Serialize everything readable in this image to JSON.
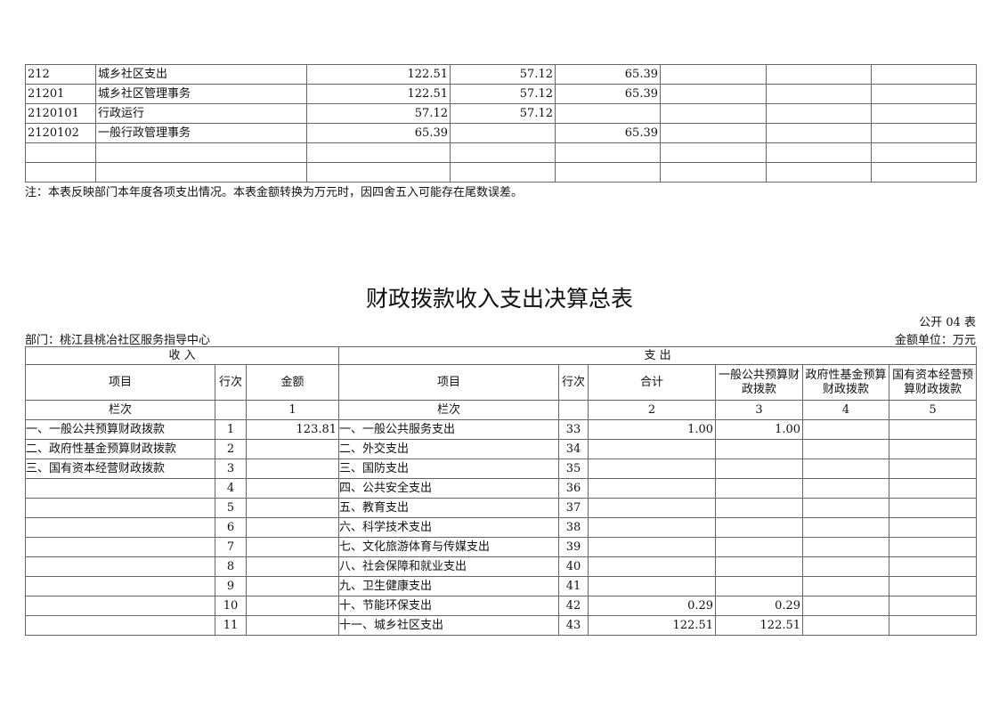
{
  "top_table": {
    "rows": [
      [
        "212",
        "城乡社区支出",
        "122.51",
        "57.12",
        "65.39",
        "",
        "",
        ""
      ],
      [
        "21201",
        "城乡社区管理事务",
        "122.51",
        "57.12",
        "65.39",
        "",
        "",
        ""
      ],
      [
        "2120101",
        "行政运行",
        "57.12",
        "57.12",
        "",
        "",
        "",
        ""
      ],
      [
        "2120102",
        "一般行政管理事务",
        "65.39",
        "",
        "65.39",
        "",
        "",
        ""
      ],
      [
        "",
        "",
        "",
        "",
        "",
        "",
        "",
        ""
      ],
      [
        "",
        "",
        "",
        "",
        "",
        "",
        "",
        ""
      ]
    ]
  },
  "note": "注：本表反映部门本年度各项支出情况。本表金额转换为万元时，因四舍五入可能存在尾数误差。",
  "title": "财政拨款收入支出决算总表",
  "table_code": "公开 04 表",
  "department": "部门：桃江县桃冶社区服务指导中心",
  "unit": "金额单位：万元",
  "main_table": {
    "income_header": "收 入",
    "expense_header": "支 出",
    "headers": [
      "项目",
      "行次",
      "金额",
      "项目",
      "行次",
      "合计",
      "一般公共预算财政拨款",
      "政府性基金预算财政拨款",
      "国有资本经营预算财政拨款"
    ],
    "col_row": [
      "栏次",
      "",
      "1",
      "栏次",
      "",
      "2",
      "3",
      "4",
      "5"
    ],
    "rows": [
      [
        "一、一般公共预算财政拨款",
        "1",
        "123.81",
        "一、一般公共服务支出",
        "33",
        "1.00",
        "1.00",
        "",
        ""
      ],
      [
        "二、政府性基金预算财政拨款",
        "2",
        "",
        "二、外交支出",
        "34",
        "",
        "",
        "",
        ""
      ],
      [
        "三、国有资本经营财政拨款",
        "3",
        "",
        "三、国防支出",
        "35",
        "",
        "",
        "",
        ""
      ],
      [
        "",
        "4",
        "",
        "四、公共安全支出",
        "36",
        "",
        "",
        "",
        ""
      ],
      [
        "",
        "5",
        "",
        "五、教育支出",
        "37",
        "",
        "",
        "",
        ""
      ],
      [
        "",
        "6",
        "",
        "六、科学技术支出",
        "38",
        "",
        "",
        "",
        ""
      ],
      [
        "",
        "7",
        "",
        "七、文化旅游体育与传媒支出",
        "39",
        "",
        "",
        "",
        ""
      ],
      [
        "",
        "8",
        "",
        "八、社会保障和就业支出",
        "40",
        "",
        "",
        "",
        ""
      ],
      [
        "",
        "9",
        "",
        "九、卫生健康支出",
        "41",
        "",
        "",
        "",
        ""
      ],
      [
        "",
        "10",
        "",
        "十、节能环保支出",
        "42",
        "0.29",
        "0.29",
        "",
        ""
      ],
      [
        "",
        "11",
        "",
        "十一、城乡社区支出",
        "43",
        "122.51",
        "122.51",
        "",
        ""
      ]
    ]
  }
}
